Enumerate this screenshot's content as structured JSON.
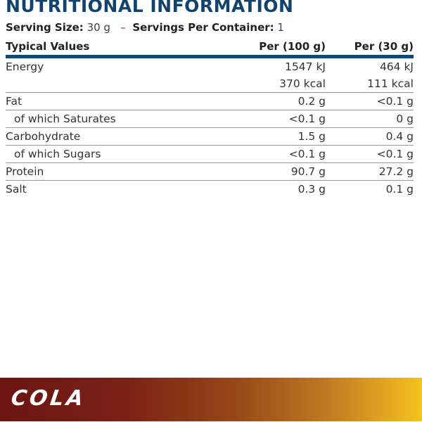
{
  "title": "NUTRITIONAL INFORMATION",
  "serving": {
    "size_label": "Serving Size:",
    "size_value": "30 g",
    "separator": "–",
    "per_container_label": "Servings Per Container:",
    "per_container_value": "1"
  },
  "table": {
    "headers": [
      "Typical Values",
      "Per (100 g)",
      "Per (30 g)"
    ],
    "rows": [
      {
        "label": "Energy",
        "per100": "1547 kJ",
        "per30": "464 kJ",
        "indent": false
      },
      {
        "label": "",
        "per100": "370 kcal",
        "per30": "111 kcal",
        "indent": false
      },
      {
        "label": "Fat",
        "per100": "0.2 g",
        "per30": "<0.1 g",
        "indent": false
      },
      {
        "label": "of which Saturates",
        "per100": "<0.1 g",
        "per30": "0 g",
        "indent": true
      },
      {
        "label": "Carbohydrate",
        "per100": "1.5 g",
        "per30": "0.4 g",
        "indent": false
      },
      {
        "label": "of which Sugars",
        "per100": "<0.1 g",
        "per30": "<0.1 g",
        "indent": true
      },
      {
        "label": "Protein",
        "per100": "90.7 g",
        "per30": "27.2 g",
        "indent": false
      },
      {
        "label": "Salt",
        "per100": "0.3 g",
        "per30": "0.1 g",
        "indent": false
      }
    ]
  },
  "banner": {
    "flavor": "COLA",
    "gradient_colors": [
      "#6b1513",
      "#7a2216",
      "#954617",
      "#c07a22",
      "#f6c21e"
    ]
  },
  "colors": {
    "title": "#12426e",
    "rule": "#0f4779"
  }
}
